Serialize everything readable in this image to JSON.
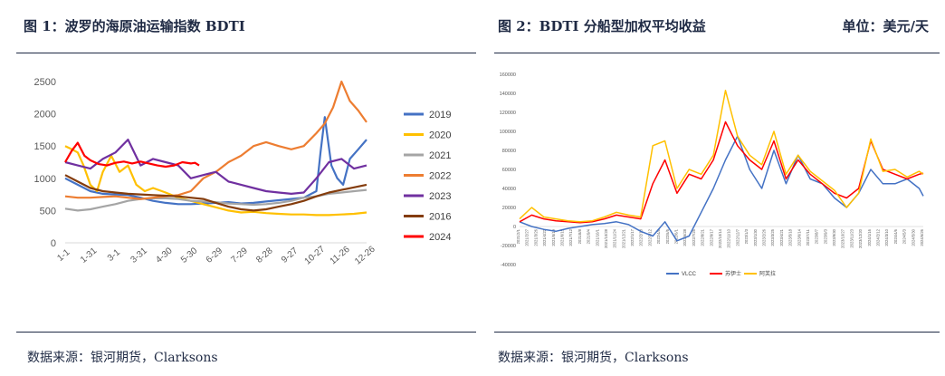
{
  "left_panel": {
    "title": "图 1：波罗的海原油运输指数 BDTI",
    "source": "数据来源：银河期货，Clarksons"
  },
  "right_panel": {
    "title": "图 2：BDTI 分船型加权平均收益",
    "unit": "单位：美元/天",
    "source": "数据来源：银河期货，Clarksons"
  },
  "chart_data": [
    {
      "type": "line",
      "title": "波罗的海原油运输指数 BDTI",
      "xlabel": "",
      "ylabel": "",
      "ylim": [
        0,
        2500
      ],
      "yticks": [
        0,
        500,
        1000,
        1500,
        2000,
        2500
      ],
      "xlim": [
        0,
        360
      ],
      "categories": [
        "1-1",
        "1-31",
        "3-1",
        "3-31",
        "4-30",
        "5-30",
        "6-29",
        "7-29",
        "8-28",
        "9-27",
        "10-27",
        "11-26",
        "12-26"
      ],
      "legend_position": "right",
      "series": [
        {
          "name": "2019",
          "color": "#4472c4",
          "x": [
            0,
            15,
            30,
            45,
            60,
            75,
            90,
            105,
            120,
            135,
            150,
            165,
            180,
            195,
            210,
            225,
            240,
            255,
            270,
            285,
            300,
            305,
            310,
            318,
            325,
            332,
            340,
            350,
            360
          ],
          "y": [
            1000,
            900,
            800,
            760,
            750,
            740,
            700,
            650,
            620,
            600,
            600,
            610,
            620,
            630,
            610,
            620,
            640,
            660,
            680,
            700,
            800,
            1400,
            1950,
            1200,
            1000,
            900,
            1300,
            1450,
            1600
          ]
        },
        {
          "name": "2020",
          "color": "#ffc000",
          "x": [
            0,
            8,
            15,
            22,
            30,
            38,
            45,
            55,
            65,
            75,
            85,
            95,
            105,
            120,
            135,
            150,
            165,
            180,
            195,
            210,
            225,
            240,
            255,
            270,
            285,
            300,
            315,
            330,
            345,
            360
          ],
          "y": [
            1500,
            1450,
            1400,
            1200,
            900,
            800,
            1100,
            1350,
            1100,
            1200,
            900,
            800,
            850,
            780,
            700,
            650,
            600,
            550,
            500,
            470,
            480,
            460,
            450,
            440,
            440,
            430,
            430,
            440,
            450,
            470
          ]
        },
        {
          "name": "2021",
          "color": "#a5a5a5",
          "x": [
            0,
            15,
            30,
            45,
            60,
            75,
            90,
            105,
            120,
            135,
            150,
            165,
            180,
            195,
            210,
            225,
            240,
            255,
            270,
            285,
            300,
            315,
            330,
            345,
            360
          ],
          "y": [
            530,
            500,
            520,
            560,
            600,
            650,
            680,
            690,
            690,
            680,
            650,
            640,
            630,
            610,
            600,
            590,
            600,
            620,
            650,
            700,
            720,
            760,
            780,
            800,
            820
          ]
        },
        {
          "name": "2022",
          "color": "#ed7d31",
          "x": [
            0,
            15,
            30,
            45,
            60,
            75,
            90,
            105,
            120,
            135,
            150,
            165,
            180,
            195,
            210,
            225,
            240,
            255,
            270,
            285,
            300,
            310,
            320,
            330,
            340,
            350,
            360
          ],
          "y": [
            720,
            700,
            700,
            710,
            720,
            700,
            680,
            700,
            720,
            740,
            800,
            1000,
            1100,
            1250,
            1350,
            1500,
            1560,
            1500,
            1450,
            1500,
            1700,
            1850,
            2100,
            2500,
            2200,
            2050,
            1870
          ]
        },
        {
          "name": "2023",
          "color": "#7030a0",
          "x": [
            0,
            15,
            30,
            45,
            60,
            75,
            90,
            105,
            120,
            135,
            150,
            165,
            180,
            195,
            210,
            225,
            240,
            255,
            270,
            285,
            300,
            315,
            330,
            345,
            360
          ],
          "y": [
            1250,
            1200,
            1150,
            1300,
            1400,
            1600,
            1200,
            1300,
            1250,
            1200,
            1000,
            1050,
            1100,
            950,
            900,
            850,
            800,
            780,
            760,
            780,
            1000,
            1250,
            1300,
            1150,
            1200
          ]
        },
        {
          "name": "2016",
          "color": "#843c0c",
          "x": [
            0,
            15,
            30,
            45,
            60,
            75,
            90,
            105,
            120,
            135,
            150,
            165,
            180,
            195,
            210,
            225,
            240,
            255,
            270,
            285,
            300,
            315,
            330,
            345,
            360
          ],
          "y": [
            1050,
            950,
            850,
            800,
            780,
            760,
            750,
            740,
            730,
            720,
            700,
            680,
            620,
            560,
            520,
            500,
            520,
            560,
            600,
            650,
            720,
            780,
            820,
            860,
            900
          ]
        },
        {
          "name": "2024",
          "color": "#ff0000",
          "x": [
            0,
            8,
            15,
            23,
            30,
            40,
            50,
            60,
            70,
            80,
            90,
            100,
            110,
            120,
            130,
            140,
            150,
            155,
            160
          ],
          "y": [
            1250,
            1430,
            1550,
            1350,
            1280,
            1220,
            1200,
            1240,
            1260,
            1230,
            1260,
            1230,
            1200,
            1180,
            1200,
            1250,
            1230,
            1240,
            1200
          ]
        }
      ]
    },
    {
      "type": "line",
      "title": "BDTI 分船型加权平均收益",
      "xlabel": "",
      "ylabel": "美元/天",
      "ylim": [
        -40000,
        160000
      ],
      "yticks": [
        -40000,
        -20000,
        0,
        20000,
        40000,
        60000,
        80000,
        100000,
        120000,
        140000,
        160000
      ],
      "xlim": [
        0,
        100
      ],
      "categories": [
        "2021/2/1",
        "2021/2/27",
        "2021/3/26",
        "2021/4/22",
        "2021/5/19",
        "2021/6/15",
        "2021/7/12",
        "2021/8/8",
        "2021/9/4",
        "2021/10/1",
        "2021/10/28",
        "2021/11/24",
        "2021/12/21",
        "2022/1/17",
        "2022/2/13",
        "2022/3/12",
        "2022/4/8",
        "2022/5/5",
        "2022/6/1",
        "2022/6/28",
        "2022/7/25",
        "2022/8/21",
        "2022/9/17",
        "2022/10/14",
        "2022/11/10",
        "2022/12/7",
        "2023/1/3",
        "2023/1/30",
        "2023/2/26",
        "2023/3/25",
        "2023/4/21",
        "2023/5/18",
        "2023/6/14",
        "2023/7/11",
        "2023/8/7",
        "2023/9/3",
        "2023/9/30",
        "2023/10/27",
        "2023/11/23",
        "2023/12/20",
        "2024/1/16",
        "2024/2/12",
        "2024/3/10",
        "2024/4/6",
        "2024/5/3",
        "2024/5/30",
        "2024/6/26"
      ],
      "legend_position": "bottom",
      "series": [
        {
          "name": "VLCC",
          "color": "#4472c4",
          "x": [
            0,
            3,
            6,
            9,
            12,
            15,
            18,
            21,
            24,
            27,
            30,
            33,
            36,
            39,
            42,
            45,
            48,
            51,
            54,
            57,
            60,
            63,
            66,
            69,
            72,
            75,
            78,
            81,
            84,
            87,
            90,
            93,
            96,
            99,
            100
          ],
          "y": [
            5000,
            0,
            -3000,
            -5000,
            -2000,
            0,
            2000,
            3000,
            5000,
            2000,
            -5000,
            -10000,
            5000,
            -15000,
            -10000,
            15000,
            40000,
            70000,
            95000,
            60000,
            40000,
            80000,
            45000,
            75000,
            50000,
            45000,
            30000,
            20000,
            35000,
            60000,
            45000,
            45000,
            50000,
            40000,
            32000
          ]
        },
        {
          "name": "苏伊士",
          "color": "#ff0000",
          "x": [
            0,
            3,
            6,
            9,
            12,
            15,
            18,
            21,
            24,
            27,
            30,
            33,
            36,
            39,
            42,
            45,
            48,
            51,
            54,
            57,
            60,
            63,
            66,
            69,
            72,
            75,
            78,
            81,
            84,
            87,
            90,
            93,
            96,
            99,
            100
          ],
          "y": [
            5000,
            12000,
            8000,
            6000,
            5000,
            4000,
            5000,
            8000,
            12000,
            10000,
            8000,
            45000,
            70000,
            35000,
            55000,
            50000,
            70000,
            110000,
            85000,
            70000,
            60000,
            90000,
            50000,
            70000,
            55000,
            45000,
            35000,
            30000,
            40000,
            90000,
            60000,
            55000,
            50000,
            55000,
            56000
          ]
        },
        {
          "name": "阿芙拉",
          "color": "#ffc000",
          "x": [
            0,
            3,
            6,
            9,
            12,
            15,
            18,
            21,
            24,
            27,
            30,
            33,
            36,
            39,
            42,
            45,
            48,
            51,
            54,
            57,
            60,
            63,
            66,
            69,
            72,
            75,
            78,
            81,
            84,
            87,
            90,
            93,
            96,
            99,
            100
          ],
          "y": [
            8000,
            20000,
            10000,
            8000,
            6000,
            5000,
            6000,
            10000,
            15000,
            12000,
            10000,
            85000,
            90000,
            40000,
            60000,
            55000,
            75000,
            143000,
            95000,
            75000,
            65000,
            100000,
            55000,
            75000,
            58000,
            48000,
            38000,
            20000,
            35000,
            92000,
            58000,
            60000,
            52000,
            58000,
            55000
          ]
        }
      ]
    }
  ]
}
